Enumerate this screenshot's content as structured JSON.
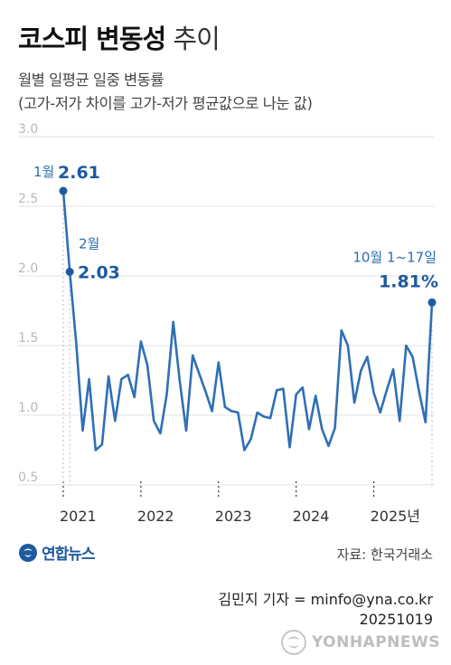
{
  "header": {
    "title_bold": "코스피 변동성",
    "title_light": "추이",
    "subtitle_line1": "월별 일평균 일중 변동률",
    "subtitle_line2": "(고가-저가 차이를 고가-저가 평균값으로 나눈 값)"
  },
  "colors": {
    "line": "#2f6fb5",
    "marker": "#1d5aa0",
    "annotation": "#1d5aa0",
    "grid": "#e3e3e3",
    "dashed_guide": "#bcbcbc"
  },
  "chart_data": {
    "type": "line",
    "ylim": [
      0.5,
      3.0
    ],
    "yticks": [
      "3.0",
      "2.5",
      "2.0",
      "1.5",
      "1.0",
      "0.5"
    ],
    "grid": true,
    "x_labels": [
      "2021",
      "2022",
      "2023",
      "2024",
      "2025년"
    ],
    "series": [
      {
        "values": [
          2.61,
          2.03,
          1.52,
          0.89,
          1.26,
          0.75,
          0.79,
          1.28,
          0.96,
          1.26,
          1.29,
          1.13,
          1.53,
          1.36,
          0.96,
          0.87,
          1.15,
          1.67,
          1.25,
          0.89,
          1.43,
          1.3,
          1.17,
          1.03,
          1.38,
          1.06,
          1.03,
          1.02,
          0.75,
          0.83,
          1.02,
          0.99,
          0.98,
          1.18,
          1.19,
          0.77,
          1.15,
          1.2,
          0.9,
          1.14,
          0.9,
          0.78,
          0.91,
          1.61,
          1.5,
          1.09,
          1.32,
          1.42,
          1.16,
          1.02,
          1.18,
          1.33,
          0.96,
          1.5,
          1.42,
          1.17,
          0.95,
          1.81
        ]
      }
    ],
    "annotations": [
      {
        "month": "1월",
        "value": "2.61"
      },
      {
        "month": "2월",
        "value": "2.03"
      },
      {
        "month": "10월 1~17일",
        "value": "1.81%"
      }
    ]
  },
  "footer": {
    "logo_text": "연합뉴스",
    "source": "자료: 한국거래소",
    "credit_line1": "김민지 기자 = minfo@yna.co.kr",
    "credit_line2": "20251019",
    "watermark": "YONHAPNEWS"
  }
}
